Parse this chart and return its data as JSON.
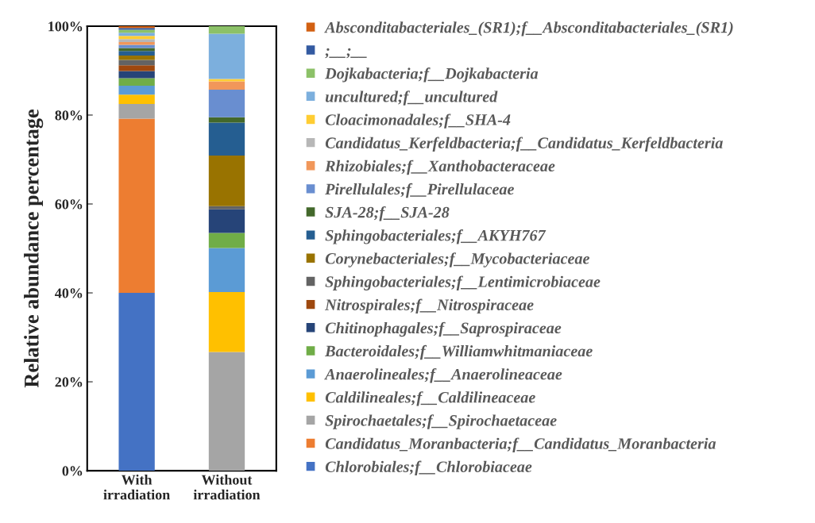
{
  "chart_data": {
    "type": "bar",
    "stacked": true,
    "ylabel": "Relative abundance percentage",
    "categories": [
      "With\nirradiation",
      "Without\nirradiation"
    ],
    "ylim": [
      0,
      100
    ],
    "yticks": [
      {
        "value": 0,
        "label": "0%"
      },
      {
        "value": 20,
        "label": "20%"
      },
      {
        "value": 40,
        "label": "40%"
      },
      {
        "value": 60,
        "label": "60%"
      },
      {
        "value": 80,
        "label": "80%"
      },
      {
        "value": 100,
        "label": "100%"
      }
    ],
    "grid": false,
    "legend": "right",
    "series": [
      {
        "name": "Chlorobiales;f__Chlorobiaceae",
        "color": "#4472c4",
        "values": [
          40.0,
          0
        ]
      },
      {
        "name": "Candidatus_Moranbacteria;f__Candidatus_Moranbacteria",
        "color": "#ed7d31",
        "values": [
          39.2,
          0
        ]
      },
      {
        "name": "Spirochaetales;f__Spirochaetaceae",
        "color": "#a5a5a5",
        "values": [
          3.3,
          26.7
        ]
      },
      {
        "name": "Caldilineales;f__Caldilineaceae",
        "color": "#ffc000",
        "values": [
          2.1,
          13.5
        ]
      },
      {
        "name": "Anaerolineales;f__Anaerolineaceae",
        "color": "#5b9bd5",
        "values": [
          2.0,
          9.9
        ]
      },
      {
        "name": "Bacteroidales;f__Williamwhitmaniaceae",
        "color": "#70ad47",
        "values": [
          1.7,
          3.4
        ]
      },
      {
        "name": "Chitinophagales;f__Saprospiraceae",
        "color": "#264478",
        "values": [
          1.6,
          5.3
        ]
      },
      {
        "name": "Nitrospirales;f__Nitrospiraceae",
        "color": "#9e480e",
        "values": [
          1.3,
          0
        ]
      },
      {
        "name": "Sphingobacteriales;f__Lentimicrobiaceae",
        "color": "#636363",
        "values": [
          1.2,
          0.7
        ]
      },
      {
        "name": "Corynebacteriales;f__Mycobacteriaceae",
        "color": "#997300",
        "values": [
          1.0,
          11.4
        ]
      },
      {
        "name": "Sphingobacteriales;f__AKYH767",
        "color": "#255e91",
        "values": [
          1.0,
          7.4
        ]
      },
      {
        "name": "SJA-28;f__SJA-28",
        "color": "#43682b",
        "values": [
          0.7,
          1.2
        ]
      },
      {
        "name": "Pirellulales;f__Pirellulaceae",
        "color": "#698ed0",
        "values": [
          0.7,
          6.2
        ]
      },
      {
        "name": "Rhizobiales;f__Xanthobacteraceae",
        "color": "#f1975a",
        "values": [
          0.6,
          1.9
        ]
      },
      {
        "name": "Candidatus_Kerfeldbacteria;f__Candidatus_Kerfeldbacteria",
        "color": "#b7b7b7",
        "values": [
          0.7,
          0
        ]
      },
      {
        "name": "Cloacimonadales;f__SHA-4",
        "color": "#ffcd33",
        "values": [
          0.7,
          0.5
        ]
      },
      {
        "name": "uncultured;f__uncultured",
        "color": "#7cafdd",
        "values": [
          0.7,
          10.2
        ]
      },
      {
        "name": "Dojkabacteria;f__Dojkabacteria",
        "color": "#8cc168",
        "values": [
          0.7,
          1.7
        ]
      },
      {
        "name": ";__;__",
        "color": "#335aa1",
        "values": [
          0.4,
          0
        ]
      },
      {
        "name": "Absconditabacteriales_(SR1);f__Absconditabacteriales_(SR1)",
        "color": "#d26012",
        "values": [
          0.4,
          0
        ]
      }
    ]
  }
}
